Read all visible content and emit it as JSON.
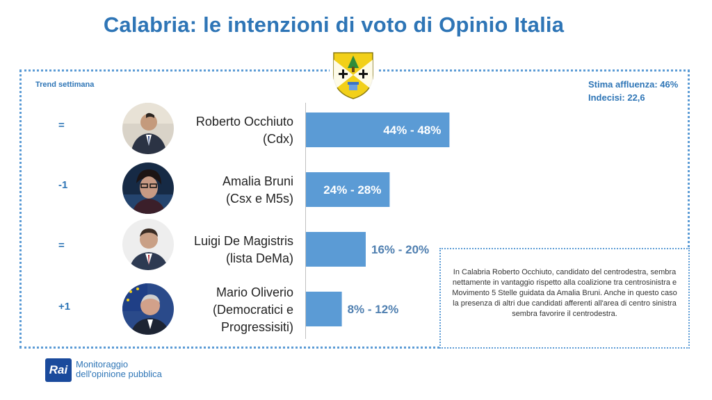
{
  "title": "Calabria: le intenzioni di voto di Opinio Italia",
  "trend_title": "Trend settimana",
  "turnout": {
    "line1": "Stima affluenza: 46%",
    "line2": "Indecisi: 22,6"
  },
  "candidates": [
    {
      "trend": "=",
      "name_line1": "Roberto Occhiuto",
      "name_line2": "(Cdx)",
      "name_line3": "",
      "label": "44% - 48%"
    },
    {
      "trend": "-1",
      "name_line1": "Amalia Bruni",
      "name_line2": "(Csx e M5s)",
      "name_line3": "",
      "label": "24% - 28%"
    },
    {
      "trend": "=",
      "name_line1": "Luigi De Magistris",
      "name_line2": "(lista DeMa)",
      "name_line3": "",
      "label": "16% - 20%"
    },
    {
      "trend": "+1",
      "name_line1": "Mario Oliverio",
      "name_line2": "(Democratici e",
      "name_line3": "Progressisiti)",
      "label": "8% - 12%"
    }
  ],
  "chart_data": {
    "type": "bar",
    "orientation": "horizontal",
    "categories": [
      "Roberto Occhiuto (Cdx)",
      "Amalia Bruni (Csx e M5s)",
      "Luigi De Magistris (lista DeMa)",
      "Mario Oliverio (Democratici e Progressisiti)"
    ],
    "ranges": [
      [
        44,
        48
      ],
      [
        24,
        28
      ],
      [
        16,
        20
      ],
      [
        8,
        12
      ]
    ],
    "data_labels": [
      "44% - 48%",
      "24% - 28%",
      "16% - 20%",
      "8% - 12%"
    ],
    "bar_color": "#5b9bd5",
    "label_inside": [
      true,
      true,
      false,
      false
    ]
  },
  "note": "In Calabria Roberto Occhiuto, candidato del centrodestra, sembra nettamente in vantaggio rispetto alla coalizione tra centrosinistra e Movimento 5 Stelle guidata da Amalia Bruni. Anche in questo caso la presenza di altri due candidati afferenti all'area di centro sinistra sembra favorire il centrodestra.",
  "footer": {
    "logo": "Rai",
    "line1": "Monitoraggio",
    "line2": "dell'opinione pubblica"
  },
  "colors": {
    "accent": "#2e75b6",
    "bar": "#5b9bd5"
  },
  "icons": [
    "calabria-region-emblem",
    "candidate-photo"
  ]
}
